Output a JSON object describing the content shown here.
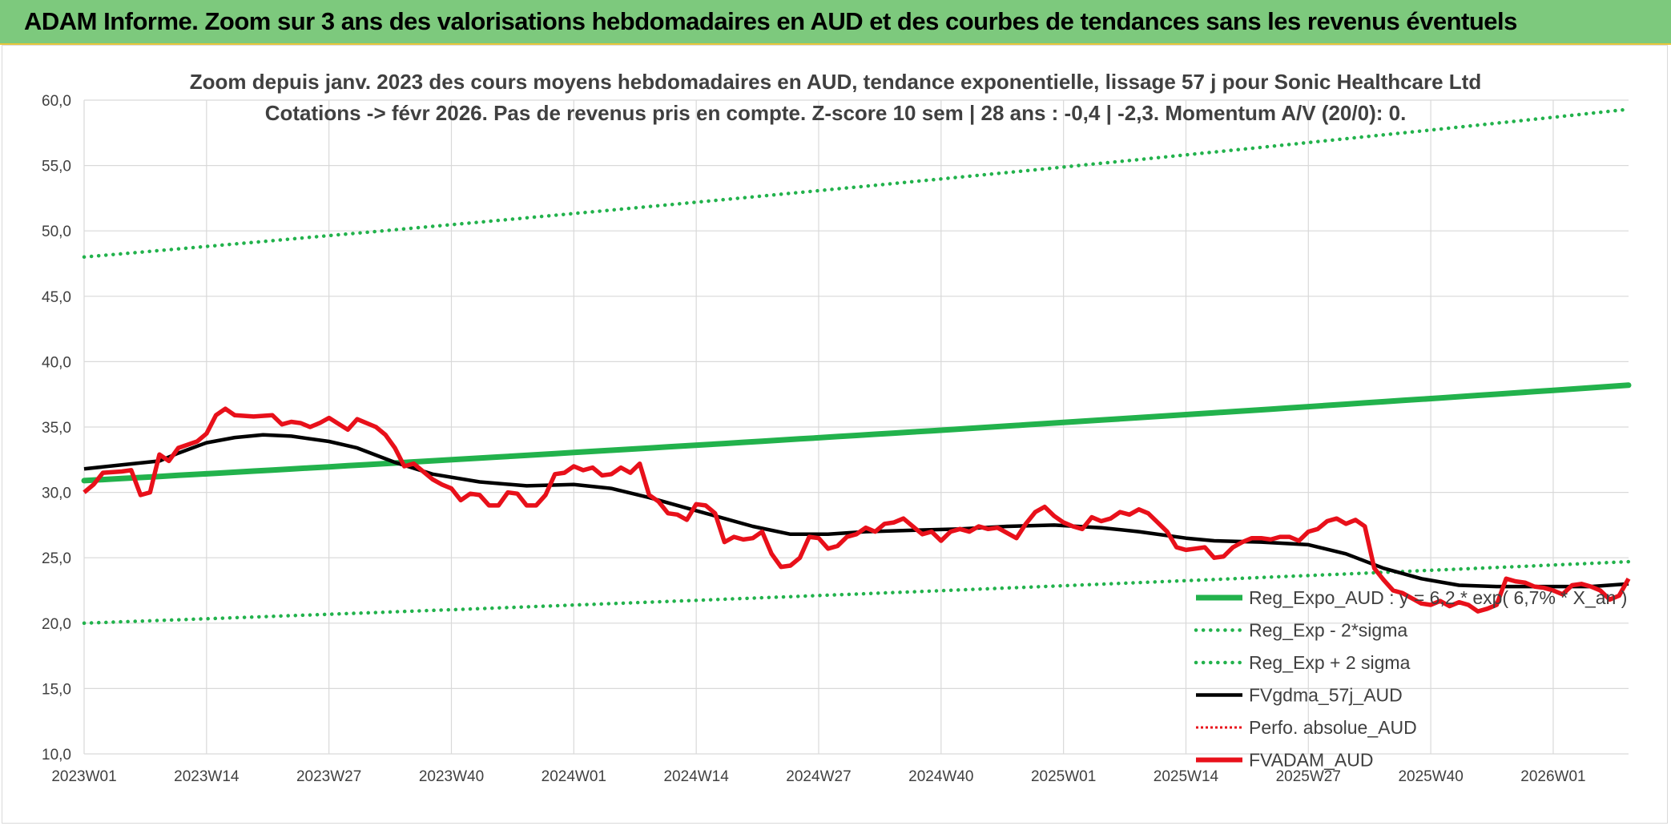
{
  "header": {
    "title": "ADAM Informe. Zoom sur 3 ans des valorisations hebdomadaires en AUD et des courbes de tendances sans les revenus éventuels"
  },
  "chart_data": {
    "type": "line",
    "title_line1": "Zoom depuis janv. 2023 des cours moyens hebdomadaires en AUD, tendance exponentielle, lissage 57 j pour Sonic Healthcare Ltd",
    "title_line2": "Cotations -> févr 2026. Pas de revenus pris en compte. Z-score 10 sem | 28 ans : -0,4 | -2,3. Momentum A/V (20/0): 0.",
    "ylim": [
      10,
      60
    ],
    "yticks": [
      "10,0",
      "15,0",
      "20,0",
      "25,0",
      "30,0",
      "35,0",
      "40,0",
      "45,0",
      "50,0",
      "55,0",
      "60,0"
    ],
    "xticks": [
      {
        "label": "2023W01",
        "week": 0
      },
      {
        "label": "2023W14",
        "week": 13
      },
      {
        "label": "2023W27",
        "week": 26
      },
      {
        "label": "2023W40",
        "week": 39
      },
      {
        "label": "2024W01",
        "week": 52
      },
      {
        "label": "2024W14",
        "week": 65
      },
      {
        "label": "2024W27",
        "week": 78
      },
      {
        "label": "2024W40",
        "week": 91
      },
      {
        "label": "2025W01",
        "week": 104
      },
      {
        "label": "2025W14",
        "week": 117
      },
      {
        "label": "2025W27",
        "week": 130
      },
      {
        "label": "2025W40",
        "week": 143
      },
      {
        "label": "2026W01",
        "week": 156
      }
    ],
    "xmax_week": 164,
    "grid": true,
    "legend_position": "bottom-right",
    "colors": {
      "green": "#22b24c",
      "dotted_green": "#22b24c",
      "black": "#000000",
      "red": "#e8101a"
    },
    "legend": [
      {
        "label": "Reg_Expo_AUD : y = 6,2 * exp( 6,7% *  X_an )",
        "style": "solid-green"
      },
      {
        "label": "Reg_Exp - 2*sigma",
        "style": "dotted-green"
      },
      {
        "label": "Reg_Exp + 2 sigma",
        "style": "dotted-green"
      },
      {
        "label": "FVgdma_57j_AUD",
        "style": "solid-black"
      },
      {
        "label": "Perfo. absolue_AUD",
        "style": "dotted-red"
      },
      {
        "label": "FVADAM_AUD",
        "style": "solid-red"
      }
    ],
    "series": [
      {
        "name": "Reg_Expo_AUD",
        "type": "exp",
        "start": 30.9,
        "end": 38.2
      },
      {
        "name": "Reg_Exp - 2*sigma",
        "type": "exp",
        "start": 20.0,
        "end": 24.7
      },
      {
        "name": "Reg_Exp + 2 sigma",
        "type": "exp",
        "start": 48.0,
        "end": 59.3
      },
      {
        "name": "FVgdma_57j_AUD",
        "points": [
          [
            0,
            31.8
          ],
          [
            4,
            32.1
          ],
          [
            8,
            32.4
          ],
          [
            10,
            33.0
          ],
          [
            13,
            33.8
          ],
          [
            16,
            34.2
          ],
          [
            19,
            34.4
          ],
          [
            22,
            34.3
          ],
          [
            26,
            33.9
          ],
          [
            29,
            33.4
          ],
          [
            33,
            32.3
          ],
          [
            37,
            31.4
          ],
          [
            42,
            30.8
          ],
          [
            47,
            30.5
          ],
          [
            52,
            30.6
          ],
          [
            56,
            30.3
          ],
          [
            60,
            29.6
          ],
          [
            64,
            28.8
          ],
          [
            68,
            28.0
          ],
          [
            71,
            27.4
          ],
          [
            75,
            26.8
          ],
          [
            79,
            26.8
          ],
          [
            83,
            27.0
          ],
          [
            88,
            27.1
          ],
          [
            93,
            27.2
          ],
          [
            98,
            27.4
          ],
          [
            103,
            27.5
          ],
          [
            108,
            27.3
          ],
          [
            112,
            27.0
          ],
          [
            117,
            26.5
          ],
          [
            120,
            26.3
          ],
          [
            125,
            26.2
          ],
          [
            130,
            26.0
          ],
          [
            134,
            25.3
          ],
          [
            138,
            24.2
          ],
          [
            142,
            23.4
          ],
          [
            146,
            22.9
          ],
          [
            150,
            22.8
          ],
          [
            155,
            22.8
          ],
          [
            160,
            22.8
          ],
          [
            164,
            23.0
          ]
        ]
      },
      {
        "name": "FVADAM_AUD",
        "points": [
          [
            0,
            30.0
          ],
          [
            1,
            30.6
          ],
          [
            2,
            31.5
          ],
          [
            4,
            31.6
          ],
          [
            5,
            31.7
          ],
          [
            6,
            29.8
          ],
          [
            7,
            30.0
          ],
          [
            8,
            32.9
          ],
          [
            9,
            32.4
          ],
          [
            10,
            33.4
          ],
          [
            12,
            33.9
          ],
          [
            13,
            34.5
          ],
          [
            14,
            35.9
          ],
          [
            15,
            36.4
          ],
          [
            16,
            35.9
          ],
          [
            18,
            35.8
          ],
          [
            20,
            35.9
          ],
          [
            21,
            35.2
          ],
          [
            22,
            35.4
          ],
          [
            23,
            35.3
          ],
          [
            24,
            35.0
          ],
          [
            25,
            35.3
          ],
          [
            26,
            35.7
          ],
          [
            28,
            34.8
          ],
          [
            29,
            35.6
          ],
          [
            31,
            35.0
          ],
          [
            32,
            34.4
          ],
          [
            33,
            33.4
          ],
          [
            34,
            32.0
          ],
          [
            35,
            32.2
          ],
          [
            36,
            31.6
          ],
          [
            37,
            31.0
          ],
          [
            38,
            30.6
          ],
          [
            39,
            30.3
          ],
          [
            40,
            29.4
          ],
          [
            41,
            29.9
          ],
          [
            42,
            29.8
          ],
          [
            43,
            29.0
          ],
          [
            44,
            29.0
          ],
          [
            45,
            30.0
          ],
          [
            46,
            29.9
          ],
          [
            47,
            29.0
          ],
          [
            48,
            29.0
          ],
          [
            49,
            29.8
          ],
          [
            50,
            31.4
          ],
          [
            51,
            31.5
          ],
          [
            52,
            32.0
          ],
          [
            53,
            31.7
          ],
          [
            54,
            31.9
          ],
          [
            55,
            31.3
          ],
          [
            56,
            31.4
          ],
          [
            57,
            31.9
          ],
          [
            58,
            31.5
          ],
          [
            59,
            32.2
          ],
          [
            60,
            29.8
          ],
          [
            61,
            29.3
          ],
          [
            62,
            28.4
          ],
          [
            63,
            28.3
          ],
          [
            64,
            27.9
          ],
          [
            65,
            29.1
          ],
          [
            66,
            29.0
          ],
          [
            67,
            28.4
          ],
          [
            68,
            26.2
          ],
          [
            69,
            26.6
          ],
          [
            70,
            26.4
          ],
          [
            71,
            26.5
          ],
          [
            72,
            27.0
          ],
          [
            73,
            25.3
          ],
          [
            74,
            24.3
          ],
          [
            75,
            24.4
          ],
          [
            76,
            25.0
          ],
          [
            77,
            26.6
          ],
          [
            78,
            26.5
          ],
          [
            79,
            25.7
          ],
          [
            80,
            25.9
          ],
          [
            81,
            26.6
          ],
          [
            82,
            26.8
          ],
          [
            83,
            27.3
          ],
          [
            84,
            27.0
          ],
          [
            85,
            27.6
          ],
          [
            86,
            27.7
          ],
          [
            87,
            28.0
          ],
          [
            88,
            27.4
          ],
          [
            89,
            26.8
          ],
          [
            90,
            27.0
          ],
          [
            91,
            26.3
          ],
          [
            92,
            27.0
          ],
          [
            93,
            27.2
          ],
          [
            94,
            27.0
          ],
          [
            95,
            27.4
          ],
          [
            96,
            27.2
          ],
          [
            97,
            27.3
          ],
          [
            98,
            26.9
          ],
          [
            99,
            26.5
          ],
          [
            100,
            27.6
          ],
          [
            101,
            28.5
          ],
          [
            102,
            28.9
          ],
          [
            103,
            28.2
          ],
          [
            104,
            27.7
          ],
          [
            105,
            27.4
          ],
          [
            106,
            27.2
          ],
          [
            107,
            28.1
          ],
          [
            108,
            27.8
          ],
          [
            109,
            28.0
          ],
          [
            110,
            28.5
          ],
          [
            111,
            28.3
          ],
          [
            112,
            28.7
          ],
          [
            113,
            28.4
          ],
          [
            114,
            27.7
          ],
          [
            115,
            27.0
          ],
          [
            116,
            25.8
          ],
          [
            117,
            25.6
          ],
          [
            118,
            25.7
          ],
          [
            119,
            25.8
          ],
          [
            120,
            25.0
          ],
          [
            121,
            25.1
          ],
          [
            122,
            25.8
          ],
          [
            123,
            26.2
          ],
          [
            124,
            26.5
          ],
          [
            125,
            26.5
          ],
          [
            126,
            26.4
          ],
          [
            127,
            26.6
          ],
          [
            128,
            26.6
          ],
          [
            129,
            26.3
          ],
          [
            130,
            27.0
          ],
          [
            131,
            27.2
          ],
          [
            132,
            27.8
          ],
          [
            133,
            28.0
          ],
          [
            134,
            27.6
          ],
          [
            135,
            27.9
          ],
          [
            136,
            27.4
          ],
          [
            137,
            24.2
          ],
          [
            138,
            23.3
          ],
          [
            139,
            22.5
          ],
          [
            140,
            22.3
          ],
          [
            141,
            21.9
          ],
          [
            142,
            21.5
          ],
          [
            143,
            21.4
          ],
          [
            144,
            21.7
          ],
          [
            145,
            21.3
          ],
          [
            146,
            21.6
          ],
          [
            147,
            21.4
          ],
          [
            148,
            20.9
          ],
          [
            149,
            21.1
          ],
          [
            150,
            21.4
          ],
          [
            151,
            23.4
          ],
          [
            152,
            23.2
          ],
          [
            153,
            23.1
          ],
          [
            154,
            22.8
          ],
          [
            155,
            22.7
          ],
          [
            156,
            22.5
          ],
          [
            157,
            22.2
          ],
          [
            158,
            22.9
          ],
          [
            159,
            23.0
          ],
          [
            160,
            22.8
          ],
          [
            161,
            22.5
          ],
          [
            162,
            21.8
          ],
          [
            163,
            22.1
          ],
          [
            164,
            23.4
          ]
        ]
      }
    ]
  }
}
